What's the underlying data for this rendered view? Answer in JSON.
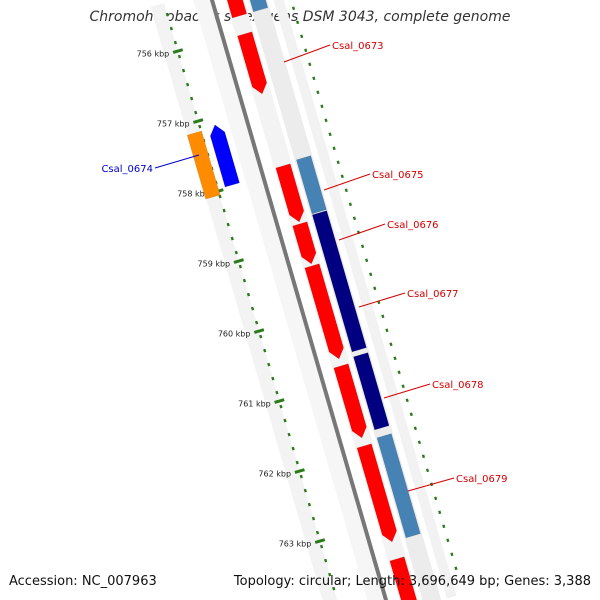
{
  "title": "Chromohalobacter salexigens DSM 3043, complete genome",
  "footer": {
    "accession": "Accession: NC_007963",
    "summary": "Topology: circular; Length: 3,696,649 bp; Genes: 3,388"
  },
  "colors": {
    "backbone": "#777777",
    "tick": "#2a7a1a",
    "cds_forward": "#ff0000",
    "cds_reverse": "#ff8c00",
    "blast_dark": "#000080",
    "blast_light": "#4682b4",
    "blast_blue": "#0000ff",
    "label_forward": "#d40000",
    "label_reverse": "#0000cc"
  },
  "kbp_ticks": [
    "756 kbp",
    "757 kbp",
    "758 kbp",
    "759 kbp",
    "760 kbp",
    "761 kbp",
    "762 kbp",
    "763 kbp"
  ],
  "gene_labels": [
    {
      "name": "Csal_0673",
      "strand": "forward"
    },
    {
      "name": "Csal_0674",
      "strand": "reverse"
    },
    {
      "name": "Csal_0675",
      "strand": "forward"
    },
    {
      "name": "Csal_0676",
      "strand": "forward"
    },
    {
      "name": "Csal_0677",
      "strand": "forward"
    },
    {
      "name": "Csal_0678",
      "strand": "forward"
    },
    {
      "name": "Csal_0679",
      "strand": "forward"
    }
  ]
}
